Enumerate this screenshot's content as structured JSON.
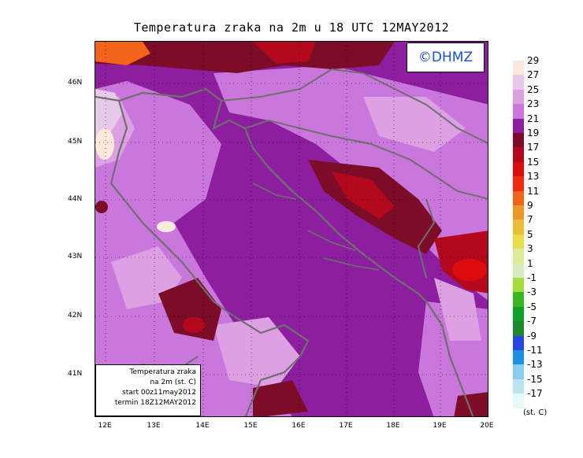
{
  "title": "Temperatura zraka na 2m u 18 UTC 12MAY2012",
  "logo_text": "©DHMZ",
  "info": {
    "line1": "Temperatura zraka",
    "line2": "na 2m (st. C)",
    "line3": "start 00z11may2012",
    "line4": "termin 18Z12MAY2012"
  },
  "lat_labels": [
    "46N",
    "45N",
    "44N",
    "43N",
    "42N",
    "41N"
  ],
  "lon_labels": [
    "12E",
    "13E",
    "14E",
    "15E",
    "16E",
    "17E",
    "18E",
    "19E",
    "20E"
  ],
  "legend": {
    "unit": "(st. C)",
    "labels": [
      "29",
      "27",
      "25",
      "23",
      "21",
      "19",
      "17",
      "15",
      "13",
      "11",
      "9",
      "7",
      "5",
      "3",
      "1",
      "-1",
      "-3",
      "-5",
      "-7",
      "-9",
      "-11",
      "-13",
      "-15",
      "-17"
    ],
    "colors": [
      "#fce9db",
      "#e9c9ea",
      "#dca0e3",
      "#c977dc",
      "#8e1ea0",
      "#7d0c28",
      "#b4081c",
      "#dc0c0c",
      "#f02b10",
      "#f26419",
      "#ee9628",
      "#e8be36",
      "#eadd4a",
      "#dfe99a",
      "#d5ecc0",
      "#a6dc3c",
      "#3cb424",
      "#0fa02a",
      "#1c8830",
      "#2546e4",
      "#1c90e4",
      "#8ccbf0",
      "#bde3ef",
      "#e9f9fa"
    ]
  },
  "map_colors": {
    "base": "#8e1ea0",
    "light": "#c977dc",
    "lighter": "#dca0e3",
    "pale": "#e9c9ea",
    "warm": "#fce9db",
    "dark_red": "#7d0c28",
    "red": "#b4081c",
    "bright_red": "#dc0c0c",
    "orange": "#f26419",
    "coast": "#6f6f6f"
  }
}
